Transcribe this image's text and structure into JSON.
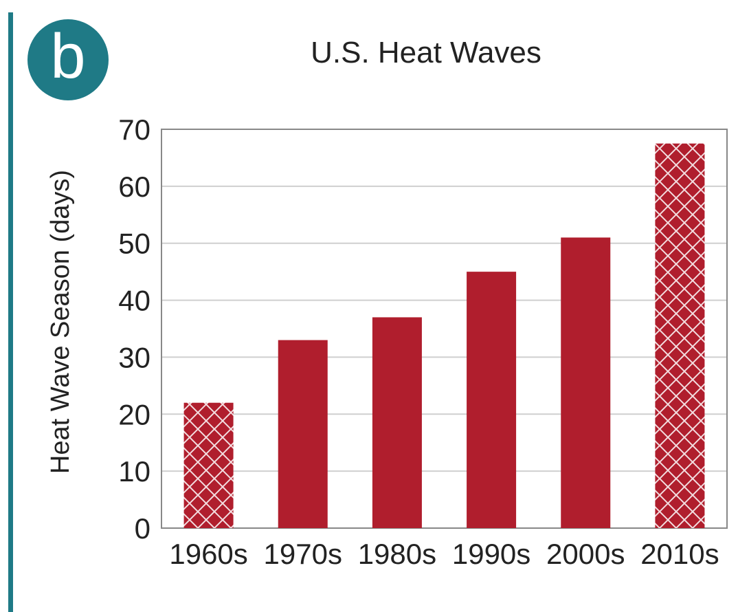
{
  "panel_label": "b",
  "colors": {
    "accent": "#1f7a86",
    "bar": "#b01e2d",
    "grid": "#cfcfcf",
    "axis": "#888888"
  },
  "chart_data": {
    "type": "bar",
    "title": "U.S. Heat Waves",
    "xlabel": "",
    "ylabel": "Heat Wave Season (days)",
    "categories": [
      "1960s",
      "1970s",
      "1980s",
      "1990s",
      "2000s",
      "2010s"
    ],
    "values": [
      22,
      33,
      37,
      45,
      51,
      67.5
    ],
    "hatched": [
      true,
      false,
      false,
      false,
      false,
      true
    ],
    "ylim": [
      0,
      70
    ],
    "yticks": [
      0,
      10,
      20,
      30,
      40,
      50,
      60,
      70
    ],
    "grid": true
  }
}
